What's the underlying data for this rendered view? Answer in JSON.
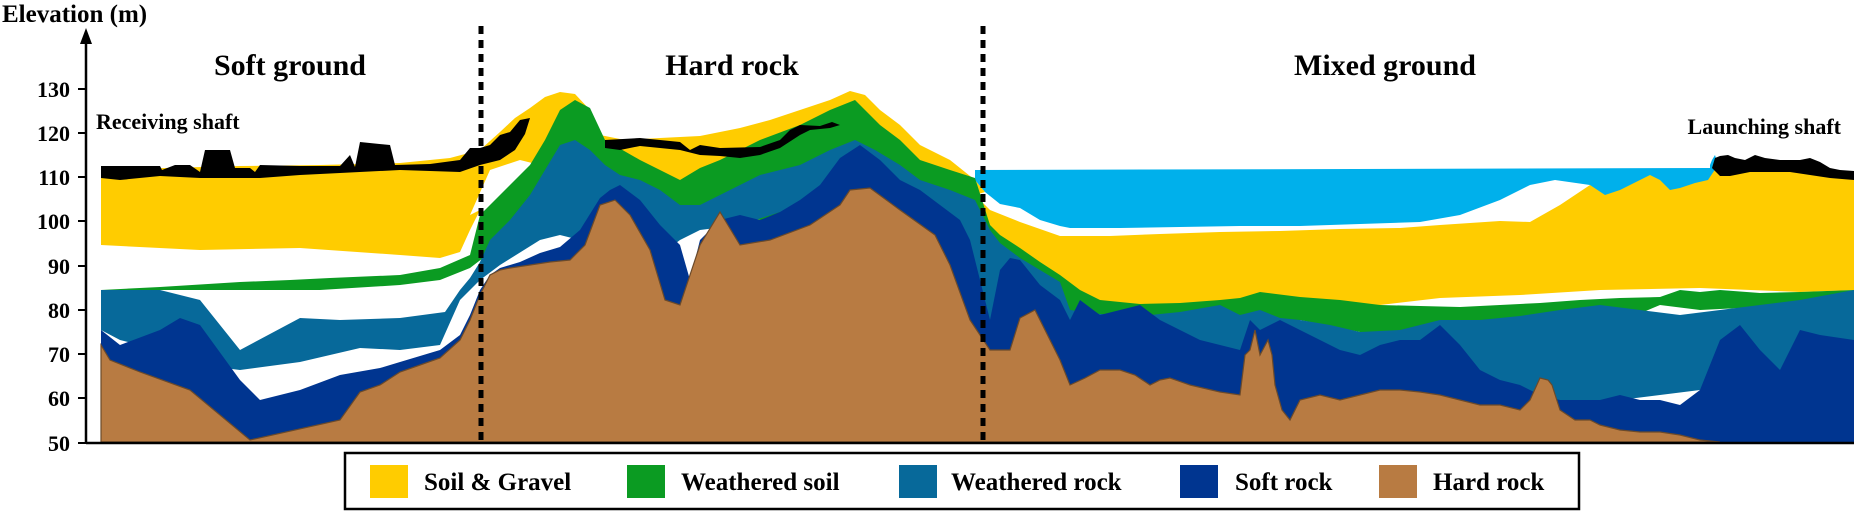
{
  "figure": {
    "y_axis_label": "Elevation (m)",
    "y_ticks": [
      "130",
      "120",
      "110",
      "100",
      "90",
      "80",
      "70",
      "60",
      "50"
    ],
    "zones": {
      "soft": "Soft ground",
      "hard": "Hard rock",
      "mixed": "Mixed ground"
    },
    "shafts": {
      "receiving": "Receiving shaft",
      "launching": "Launching shaft"
    },
    "legend": [
      {
        "label": "Soil & Gravel",
        "color": "#FFCC00"
      },
      {
        "label": "Weathered soil",
        "color": "#0B9B22"
      },
      {
        "label": "Weathered rock",
        "color": "#07699A"
      },
      {
        "label": "Soft rock",
        "color": "#003590"
      },
      {
        "label": "Hard rock",
        "color": "#B87B42"
      }
    ],
    "colors": {
      "water": "#00B0EB",
      "surface_structures": "#000000"
    }
  }
}
